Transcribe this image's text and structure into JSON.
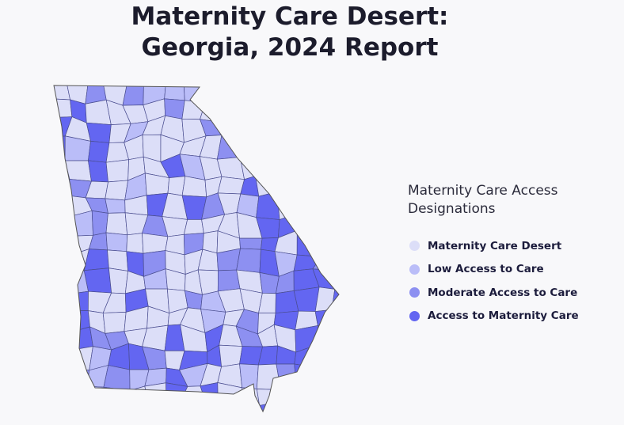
{
  "title": [
    "Maternity Care Desert:",
    "Georgia, 2024 Report"
  ],
  "legend": {
    "title": "Maternity Care Access Designations",
    "items": [
      {
        "label": "Maternity Care Desert",
        "color": "#dcdef8"
      },
      {
        "label": "Low Access to Care",
        "color": "#babdf8"
      },
      {
        "label": "Moderate Access to Care",
        "color": "#8d90f1"
      },
      {
        "label": "Access to Maternity Care",
        "color": "#6366f1"
      }
    ]
  }
}
